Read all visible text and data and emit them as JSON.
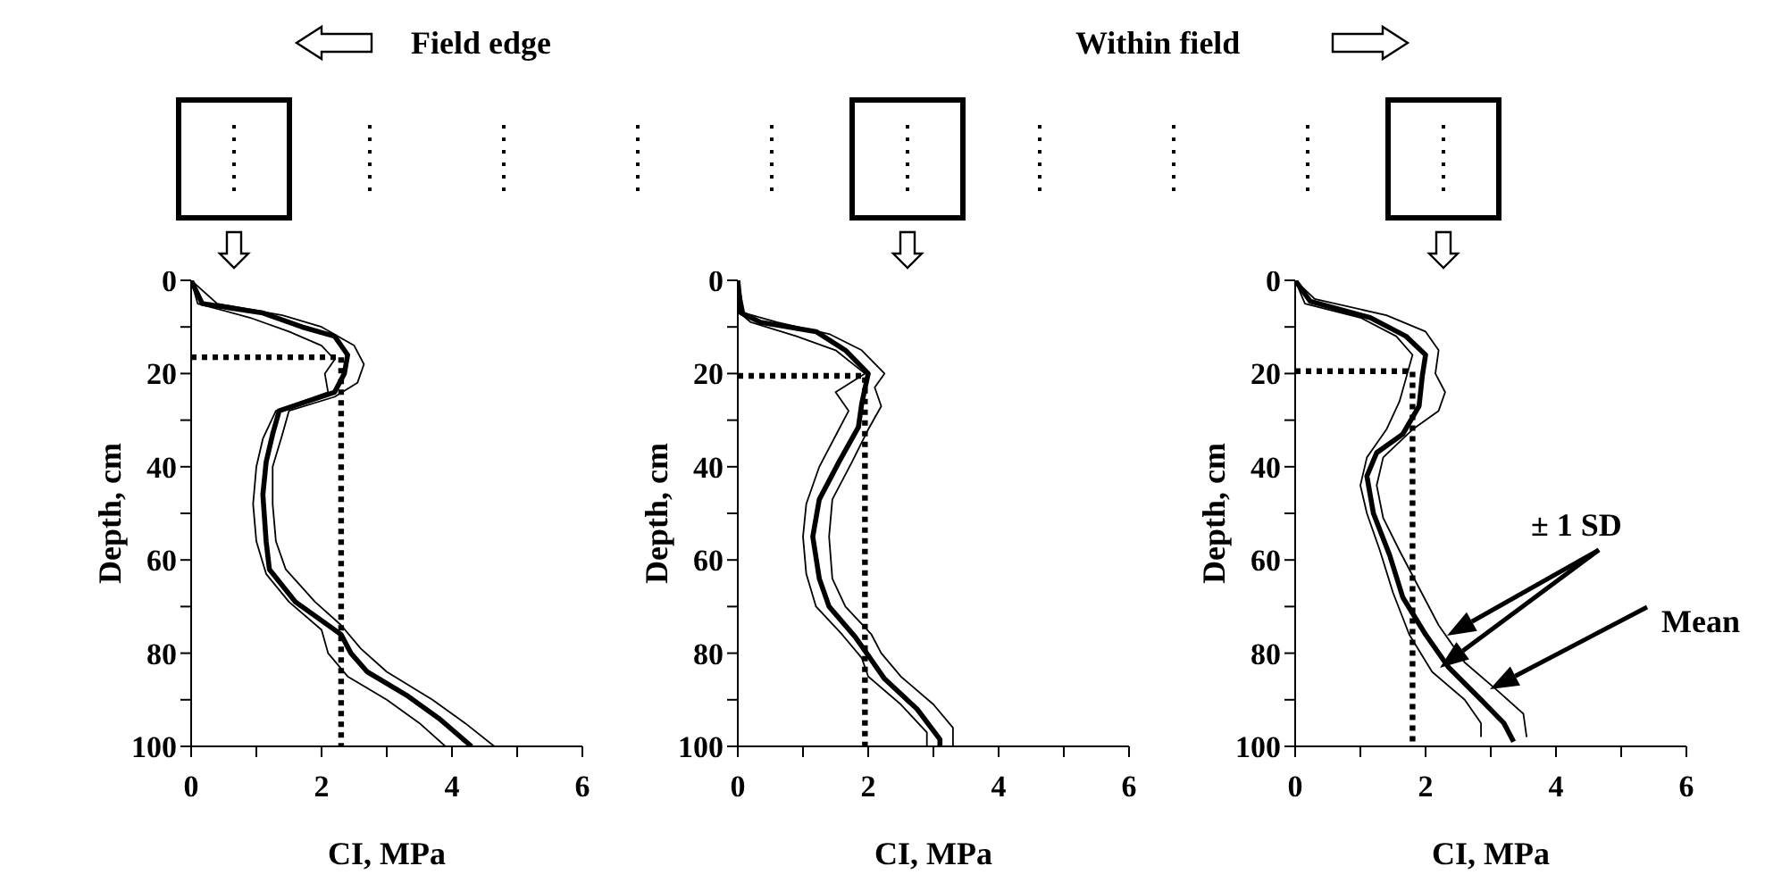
{
  "chart_data": [
    {
      "type": "line",
      "xlabel": "CI, MPa",
      "ylabel": "Depth, cm",
      "annotations": [
        "Field edge"
      ],
      "xlim": [
        0,
        6
      ],
      "xticks": [
        0,
        {
          "value": 1,
          "label": null
        },
        2,
        {
          "value": 3,
          "label": null
        },
        4,
        {
          "value": 5,
          "label": null
        },
        6
      ],
      "ylim": [
        100,
        0
      ],
      "yticks": [
        0,
        {
          "value": 10,
          "label": null
        },
        20,
        {
          "value": 30,
          "label": null
        },
        40,
        {
          "value": 50,
          "label": null
        },
        60,
        {
          "value": 70,
          "label": null
        },
        80,
        {
          "value": 90,
          "label": null
        },
        100
      ],
      "series": [
        {
          "color": "#000000",
          "x": [
            0,
            0.17,
            1.1,
            1.7,
            2.2,
            2.4,
            2.35,
            2.2,
            1.35,
            1.25,
            1.15,
            1.1,
            1.15,
            1.2,
            1.6,
            2.1,
            2.3,
            2.45,
            2.7,
            3.3,
            3.8,
            4.3
          ],
          "values": [
            0,
            5,
            7,
            10,
            12,
            16,
            20,
            24,
            28,
            33,
            39,
            46,
            56,
            62,
            69,
            74,
            76,
            80,
            84,
            89,
            94,
            100
          ]
        },
        {
          "color": "#000000",
          "x": [
            0,
            0.4,
            1.4,
            2.0,
            2.5,
            2.65,
            2.55,
            2.2,
            1.5,
            1.4,
            1.25,
            1.25,
            1.3,
            1.45,
            1.9,
            2.3,
            2.6,
            3.0,
            3.7,
            4.2,
            4.65
          ],
          "values": [
            0,
            5,
            7.5,
            10,
            14,
            18,
            22,
            25,
            28,
            33,
            40,
            48,
            56,
            62,
            69,
            74,
            79,
            84,
            90,
            95,
            100
          ]
        },
        {
          "color": "#000000",
          "x": [
            0,
            0.1,
            0.9,
            1.5,
            2.0,
            2.2,
            2.05,
            2.1,
            1.3,
            1.1,
            1.0,
            0.95,
            1.0,
            1.15,
            1.5,
            2.0,
            2.1,
            2.4,
            3.0,
            3.5,
            3.9
          ],
          "values": [
            0,
            5,
            8,
            11,
            14,
            17,
            20,
            24,
            28,
            34,
            40,
            48,
            56,
            63,
            69,
            75,
            80,
            85,
            90,
            95,
            100
          ]
        },
        {
          "color": "#000000",
          "line_style": "dotted",
          "x": [
            0,
            2.3,
            2.3
          ],
          "values": [
            16.5,
            16.5,
            100
          ]
        }
      ]
    },
    {
      "type": "line",
      "xlabel": "CI, MPa",
      "ylabel": "Depth, cm",
      "xlim": [
        0,
        6
      ],
      "xticks": [
        0,
        {
          "value": 1,
          "label": null
        },
        2,
        {
          "value": 3,
          "label": null
        },
        4,
        {
          "value": 5,
          "label": null
        },
        6
      ],
      "ylim": [
        100,
        0
      ],
      "yticks": [
        0,
        {
          "value": 10,
          "label": null
        },
        20,
        {
          "value": 30,
          "label": null
        },
        40,
        {
          "value": 50,
          "label": null
        },
        60,
        {
          "value": 70,
          "label": null
        },
        80,
        {
          "value": 90,
          "label": null
        },
        100
      ],
      "series": [
        {
          "color": "#000000",
          "x": [
            0,
            0.05,
            0.35,
            1.2,
            1.65,
            2.0,
            1.9,
            1.85,
            1.55,
            1.25,
            1.15,
            1.25,
            1.4,
            1.8,
            2.0,
            2.25,
            2.75,
            3.1,
            3.1
          ],
          "values": [
            0,
            7,
            9,
            11,
            15,
            20,
            26.5,
            31.5,
            39,
            47,
            55,
            64,
            70,
            76.5,
            80.5,
            85.5,
            92,
            98.5,
            100
          ]
        },
        {
          "color": "#000000",
          "x": [
            0,
            0.1,
            0.6,
            1.4,
            1.9,
            2.25,
            2.1,
            2.2,
            2.0,
            1.75,
            1.45,
            1.4,
            1.45,
            1.65,
            2.05,
            2.2,
            2.5,
            3.0,
            3.3,
            3.3
          ],
          "values": [
            0,
            7,
            9,
            11.5,
            15,
            20,
            23,
            27,
            32,
            39,
            47,
            55,
            64,
            70,
            76,
            80,
            85,
            91,
            96,
            100
          ]
        },
        {
          "color": "#000000",
          "x": [
            0,
            0.03,
            0.2,
            0.9,
            1.5,
            1.95,
            1.5,
            1.7,
            1.55,
            1.25,
            1.05,
            1.0,
            1.05,
            1.2,
            1.6,
            1.9,
            2.0,
            2.5,
            2.9,
            2.9
          ],
          "values": [
            0,
            7,
            9,
            12,
            15,
            20,
            24,
            28,
            32,
            40,
            48,
            55,
            63,
            70,
            76,
            81,
            85,
            91,
            97,
            100
          ]
        },
        {
          "color": "#000000",
          "line_style": "dotted",
          "x": [
            0,
            1.95,
            1.95
          ],
          "values": [
            20.5,
            20.5,
            100
          ]
        }
      ]
    },
    {
      "type": "line",
      "xlabel": "CI, MPa",
      "ylabel": "Depth, cm",
      "annotations": [
        "Within field",
        "± 1 SD",
        "Mean"
      ],
      "xlim": [
        0,
        6
      ],
      "xticks": [
        0,
        {
          "value": 1,
          "label": null
        },
        2,
        {
          "value": 3,
          "label": null
        },
        4,
        {
          "value": 5,
          "label": null
        },
        6
      ],
      "ylim": [
        100,
        0
      ],
      "yticks": [
        0,
        {
          "value": 10,
          "label": null
        },
        20,
        {
          "value": 30,
          "label": null
        },
        40,
        {
          "value": 50,
          "label": null
        },
        60,
        {
          "value": 70,
          "label": null
        },
        80,
        {
          "value": 90,
          "label": null
        },
        100
      ],
      "series": [
        {
          "color": "#000000",
          "x": [
            0,
            0.23,
            1.15,
            1.7,
            2.0,
            1.95,
            1.9,
            1.65,
            1.25,
            1.1,
            1.2,
            1.45,
            1.65,
            2.0,
            2.35,
            2.85,
            3.2,
            3.35
          ],
          "values": [
            0,
            4.5,
            8,
            12,
            16,
            20.5,
            27,
            33,
            37,
            42,
            50,
            59,
            68,
            76,
            83,
            90,
            95,
            99
          ]
        },
        {
          "color": "#000000",
          "x": [
            0,
            0.3,
            1.4,
            2.0,
            2.2,
            2.15,
            2.3,
            2.2,
            1.8,
            1.35,
            1.25,
            1.35,
            1.6,
            1.9,
            2.2,
            2.6,
            3.1,
            3.5,
            3.55
          ],
          "values": [
            0,
            4,
            7.5,
            11,
            15,
            20,
            24,
            28,
            32,
            38,
            44,
            51,
            58,
            66,
            74,
            82,
            88,
            93,
            98
          ]
        },
        {
          "color": "#000000",
          "x": [
            0,
            0.15,
            1.0,
            1.55,
            1.8,
            1.7,
            1.6,
            1.4,
            1.1,
            1.0,
            1.1,
            1.3,
            1.5,
            1.75,
            2.1,
            2.6,
            2.85,
            2.85
          ],
          "values": [
            0,
            5,
            8,
            12,
            16,
            21,
            26,
            32,
            38,
            44,
            50,
            58,
            67,
            76,
            84,
            90,
            95,
            98
          ]
        },
        {
          "color": "#000000",
          "line_style": "dotted",
          "x": [
            0,
            1.8,
            1.8
          ],
          "values": [
            19.5,
            19.5,
            100
          ]
        }
      ]
    }
  ]
}
